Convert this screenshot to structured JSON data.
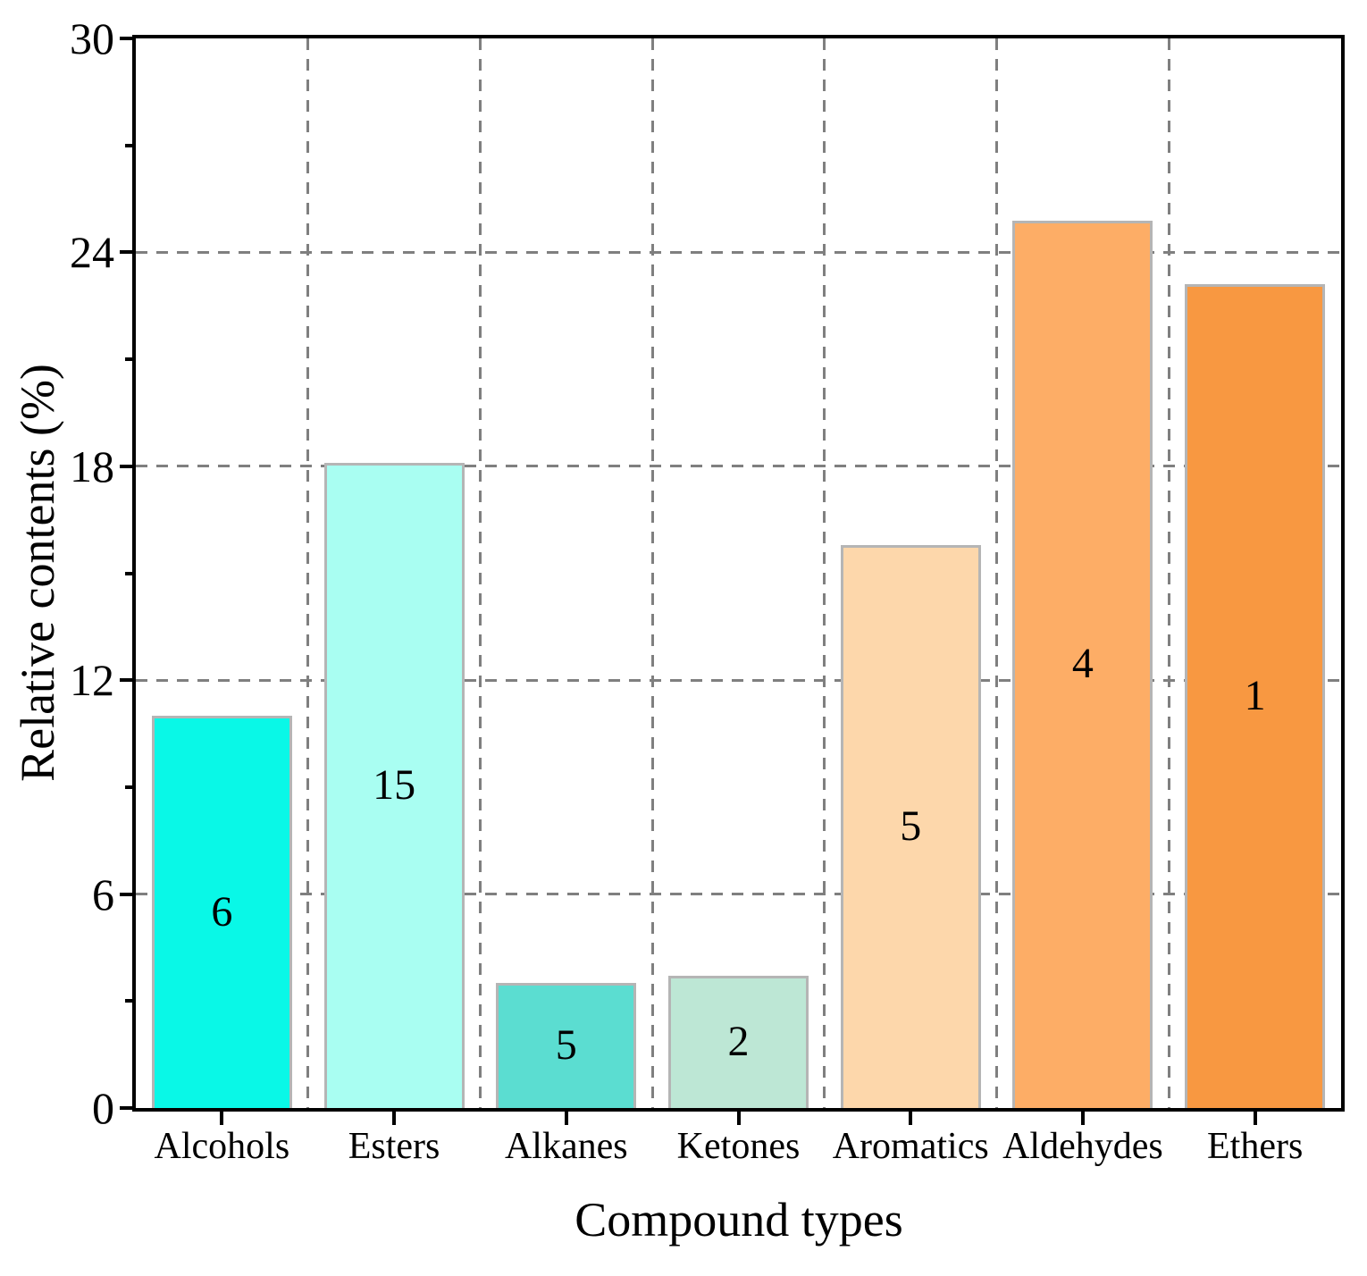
{
  "chart_data": {
    "type": "bar",
    "title": "",
    "xlabel": "Compound types",
    "ylabel": "Relative contents (%)",
    "categories": [
      "Alcohols",
      "Esters",
      "Alkanes",
      "Ketones",
      "Aromatics",
      "Aldehydes",
      "Ethers"
    ],
    "values": [
      11.0,
      18.1,
      3.5,
      3.7,
      15.8,
      24.9,
      23.1
    ],
    "bar_labels": [
      "6",
      "15",
      "5",
      "2",
      "5",
      "4",
      "1"
    ],
    "bar_colors": [
      "#09f8e7",
      "#a9fef2",
      "#5bddd1",
      "#bde7d5",
      "#fdd7ab",
      "#fdad66",
      "#f89841"
    ],
    "bar_border_color": "#b5b5b5",
    "ylim": [
      0,
      30
    ],
    "yticks": [
      0,
      6,
      12,
      18,
      24,
      30
    ],
    "minor_yticks": [
      3,
      9,
      15,
      21,
      27
    ],
    "h_gridlines_at": [
      6,
      12,
      18,
      24
    ],
    "grid_color": "#7f7f7f",
    "grid_style": "dashed",
    "axis_color": "#000000",
    "legend": "none"
  }
}
